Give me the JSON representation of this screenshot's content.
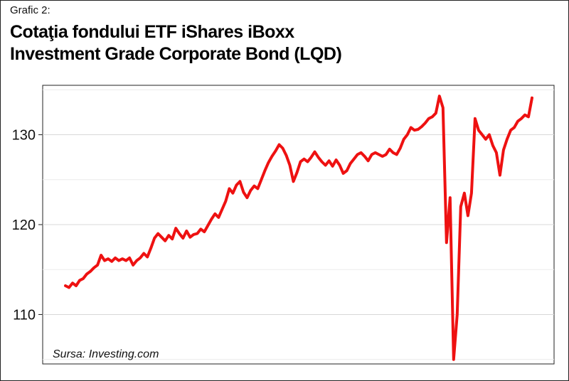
{
  "header": {
    "label": "Grafic 2:",
    "title_line1": "Cotaţia fondului ETF iShares iBoxx",
    "title_line2": "Investment Grade Corporate Bond (LQD)"
  },
  "chart_data": {
    "type": "line",
    "title": "Cotaţia fondului ETF iShares iBoxx Investment Grade Corporate Bond (LQD)",
    "xlabel": "",
    "ylabel": "",
    "ylim": [
      104.5,
      135.5
    ],
    "yticks": [
      110,
      120,
      130
    ],
    "ytick_labels": [
      "110",
      "120",
      "130"
    ],
    "grid": true,
    "source": "Sursa: Investing.com",
    "line_color": "#ee1111",
    "series": [
      {
        "values": [
          113.2,
          113.0,
          113.5,
          113.2,
          113.8,
          114.0,
          114.5,
          114.8,
          115.2,
          115.5,
          116.6,
          116.0,
          116.2,
          115.9,
          116.3,
          116.0,
          116.2,
          116.0,
          116.3,
          115.5,
          116.0,
          116.3,
          116.8,
          116.4,
          117.4,
          118.5,
          119.0,
          118.6,
          118.2,
          118.8,
          118.4,
          119.6,
          119.0,
          118.5,
          119.3,
          118.6,
          118.9,
          119.0,
          119.5,
          119.2,
          119.9,
          120.6,
          121.2,
          120.8,
          121.7,
          122.6,
          124.0,
          123.5,
          124.4,
          124.8,
          123.6,
          123.0,
          123.8,
          124.3,
          124.0,
          125.0,
          126.0,
          126.9,
          127.6,
          128.2,
          128.9,
          128.5,
          127.7,
          126.6,
          124.8,
          125.8,
          127.0,
          127.3,
          127.0,
          127.5,
          128.1,
          127.5,
          127.0,
          126.6,
          127.1,
          126.5,
          127.2,
          126.6,
          125.7,
          126.0,
          126.8,
          127.3,
          127.8,
          128.0,
          127.6,
          127.1,
          127.8,
          128.0,
          127.8,
          127.6,
          127.8,
          128.4,
          128.0,
          127.8,
          128.5,
          129.5,
          130.0,
          130.8,
          130.5,
          130.6,
          130.9,
          131.3,
          131.8,
          132.0,
          132.4,
          134.3,
          133.0,
          118.0,
          123.0,
          105.0,
          110.0,
          122.0,
          123.5,
          121.0,
          123.5,
          131.8,
          130.5,
          130.0,
          129.5,
          130.0,
          128.8,
          128.0,
          125.5,
          128.3,
          129.5,
          130.5,
          130.8,
          131.5,
          131.8,
          132.2,
          132.0,
          134.1
        ]
      }
    ]
  }
}
